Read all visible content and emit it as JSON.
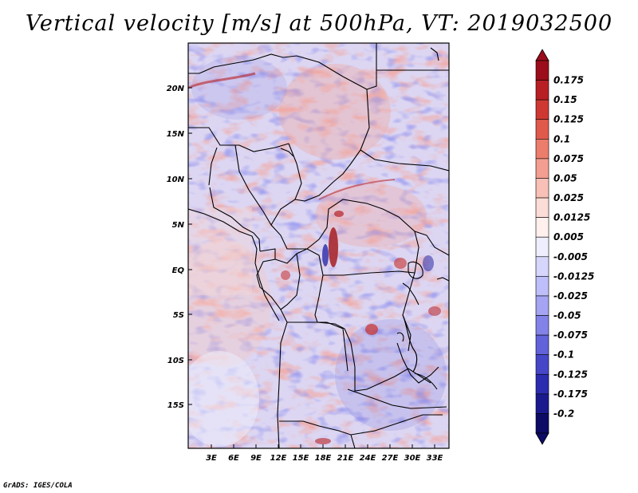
{
  "title": "Vertical velocity [m/s] at 500hPa, VT: 2019032500",
  "credit": "GrADS: IGES/COLA",
  "map": {
    "lat_labels": [
      "20N",
      "15N",
      "10N",
      "5N",
      "EQ",
      "5S",
      "10S",
      "15S"
    ],
    "lon_labels": [
      "3E",
      "6E",
      "9E",
      "12E",
      "15E",
      "18E",
      "21E",
      "24E",
      "27E",
      "30E",
      "33E"
    ]
  },
  "colorbar": {
    "labels": [
      "0.175",
      "0.15",
      "0.125",
      "0.1",
      "0.075",
      "0.05",
      "0.025",
      "0.0125",
      "0.005",
      "-0.005",
      "-0.0125",
      "-0.025",
      "-0.05",
      "-0.075",
      "-0.1",
      "-0.125",
      "-0.175",
      "-0.2"
    ],
    "colors": [
      "#9b0d1a",
      "#b81f24",
      "#cf3832",
      "#e05a4c",
      "#ec7d6c",
      "#f39e90",
      "#f8c0b6",
      "#fcdcd6",
      "#fff0ee",
      "#eeeeff",
      "#d6d6fc",
      "#bebefa",
      "#a4a4f2",
      "#8282e8",
      "#6262da",
      "#4646c8",
      "#2c2cb0",
      "#1a1a8e",
      "#0c0c66"
    ]
  }
}
